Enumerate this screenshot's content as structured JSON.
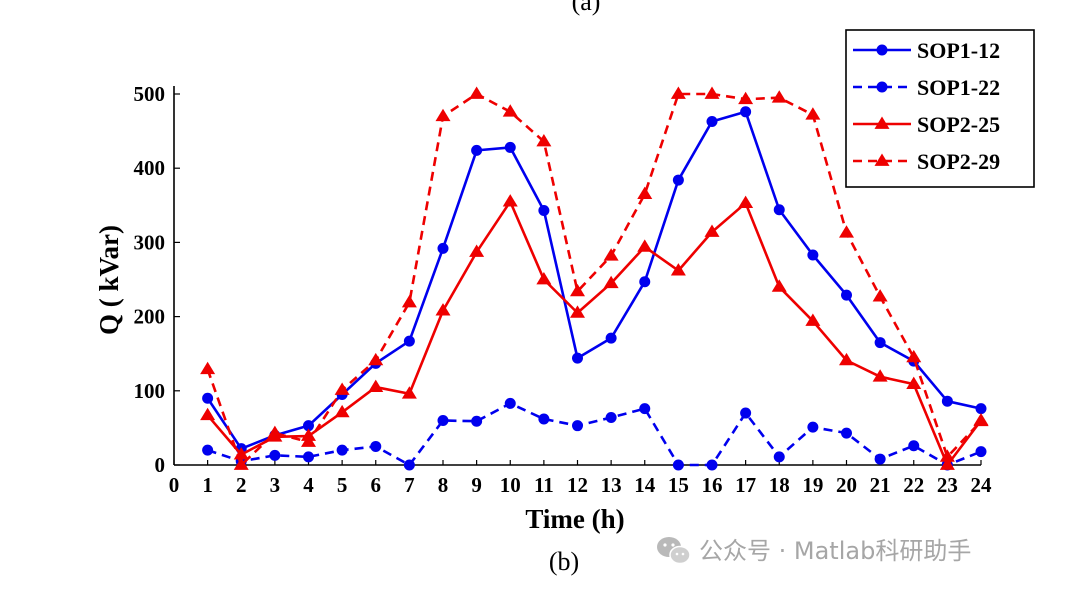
{
  "top_caption": "(a)",
  "bottom_caption": "(b)",
  "watermark": {
    "icon": "wechat-icon",
    "text": "公众号 · Matlab科研助手"
  },
  "chart_data": {
    "type": "line",
    "xlabel": "Time (h)",
    "ylabel": "Q ( kVar)",
    "xlim": [
      0,
      24
    ],
    "ylim": [
      0,
      500
    ],
    "xticks": [
      0,
      1,
      2,
      3,
      4,
      5,
      6,
      7,
      8,
      9,
      10,
      11,
      12,
      13,
      14,
      15,
      16,
      17,
      18,
      19,
      20,
      21,
      22,
      23,
      24
    ],
    "yticks": [
      0,
      100,
      200,
      300,
      400,
      500
    ],
    "grid": false,
    "legend_position": "top-right",
    "x": [
      1,
      2,
      3,
      4,
      5,
      6,
      7,
      8,
      9,
      10,
      11,
      12,
      13,
      14,
      15,
      16,
      17,
      18,
      19,
      20,
      21,
      22,
      23,
      24
    ],
    "series": [
      {
        "name": "SOP1-12",
        "color": "#0000ee",
        "line": "solid",
        "marker": "circle",
        "values": [
          90,
          22,
          40,
          53,
          95,
          137,
          167,
          292,
          424,
          428,
          343,
          144,
          171,
          247,
          384,
          463,
          476,
          344,
          283,
          229,
          165,
          140,
          86,
          76
        ]
      },
      {
        "name": "SOP1-22",
        "color": "#0000ee",
        "line": "dashed",
        "marker": "circle",
        "values": [
          20,
          5,
          13,
          11,
          20,
          25,
          0,
          60,
          59,
          83,
          62,
          53,
          64,
          76,
          0,
          0,
          70,
          11,
          51,
          43,
          8,
          26,
          0,
          18
        ]
      },
      {
        "name": "SOP2-25",
        "color": "#ee0000",
        "line": "solid",
        "marker": "triangle",
        "values": [
          67,
          14,
          38,
          39,
          71,
          105,
          96,
          208,
          287,
          355,
          250,
          205,
          245,
          294,
          262,
          314,
          353,
          240,
          194,
          141,
          119,
          109,
          0,
          60
        ]
      },
      {
        "name": "SOP2-29",
        "color": "#ee0000",
        "line": "dashed",
        "marker": "triangle",
        "values": [
          129,
          0,
          43,
          31,
          101,
          141,
          219,
          470,
          500,
          476,
          436,
          234,
          282,
          365,
          500,
          500,
          493,
          495,
          472,
          313,
          227,
          145,
          11,
          59
        ]
      }
    ]
  }
}
